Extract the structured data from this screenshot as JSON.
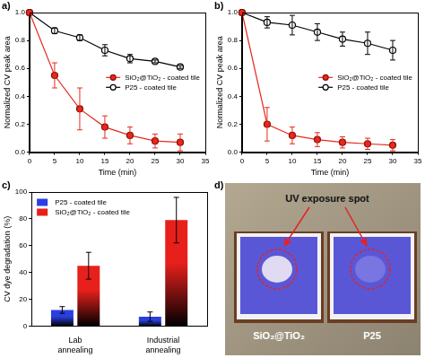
{
  "chart_data": [
    {
      "panel": "a)",
      "type": "line",
      "x_label": "Time (min)",
      "y_label": "Normalized CV peak area",
      "x": [
        0,
        5,
        10,
        15,
        20,
        25,
        30
      ],
      "series": [
        {
          "name": "SiO₂@TiO₂ - coated tile",
          "color": "#e8291c",
          "marker": "circle",
          "values": [
            1.0,
            0.55,
            0.31,
            0.18,
            0.12,
            0.08,
            0.07
          ],
          "errors": [
            0,
            0.09,
            0.15,
            0.08,
            0.06,
            0.05,
            0.06
          ]
        },
        {
          "name": "P25 - coated tile",
          "color": "#000000",
          "marker": "open-circle",
          "values": [
            1.0,
            0.87,
            0.82,
            0.73,
            0.67,
            0.65,
            0.61
          ],
          "errors": [
            0,
            0.02,
            0.02,
            0.04,
            0.03,
            0.01,
            0.01
          ]
        }
      ],
      "xlim": [
        0,
        35
      ],
      "xticks": [
        0,
        5,
        10,
        15,
        20,
        25,
        30,
        35
      ],
      "ylim": [
        0,
        1
      ],
      "yticks": [
        {
          "value": 0,
          "label": "0.0"
        },
        0.2,
        0.4,
        0.6,
        0.8,
        {
          "value": 1,
          "label": "1.0"
        }
      ],
      "grid": false,
      "legend": "right"
    },
    {
      "panel": "b)",
      "type": "line",
      "x_label": "Time (min)",
      "y_label": "Normalized CV peak area",
      "x": [
        0,
        5,
        10,
        15,
        20,
        25,
        30
      ],
      "series": [
        {
          "name": "SiO₂@TiO₂ - coated tile",
          "color": "#e8291c",
          "marker": "circle",
          "values": [
            1.0,
            0.2,
            0.12,
            0.09,
            0.07,
            0.06,
            0.05
          ],
          "errors": [
            0,
            0.12,
            0.06,
            0.05,
            0.04,
            0.04,
            0.04
          ]
        },
        {
          "name": "P25 - coated tile",
          "color": "#000000",
          "marker": "open-circle",
          "values": [
            1.0,
            0.93,
            0.91,
            0.86,
            0.81,
            0.78,
            0.73
          ],
          "errors": [
            0,
            0.04,
            0.07,
            0.06,
            0.05,
            0.08,
            0.07
          ]
        }
      ],
      "xlim": [
        0,
        35
      ],
      "xticks": [
        0,
        5,
        10,
        15,
        20,
        25,
        30,
        35
      ],
      "ylim": [
        0,
        1
      ],
      "yticks": [
        {
          "value": 0,
          "label": "0.0"
        },
        0.2,
        0.4,
        0.6,
        0.8,
        {
          "value": 1,
          "label": "1.0"
        }
      ],
      "grid": false,
      "legend": "right"
    },
    {
      "panel": "c)",
      "type": "bar",
      "y_label": "CV dye degradation (%)",
      "categories": [
        "Lab annealing",
        "Industrial annealing"
      ],
      "series": [
        {
          "name": "P25 - coated tile",
          "color": "#2b3fe0",
          "values": [
            12,
            7
          ],
          "errors": [
            2.5,
            3.5
          ]
        },
        {
          "name": "SiO₂@TiO₂ - coated tile",
          "color": "#e8201c",
          "values": [
            45,
            79
          ],
          "errors": [
            10,
            17
          ]
        }
      ],
      "ylim": [
        0,
        100
      ],
      "yticks": [
        0,
        20,
        40,
        60,
        80,
        100
      ],
      "grid": false,
      "legend": "top-left"
    }
  ],
  "photo": {
    "panel": "d)",
    "annotation": "UV exposure spot",
    "tile_labels": [
      "SiO₂@TiO₂",
      "P25"
    ]
  }
}
